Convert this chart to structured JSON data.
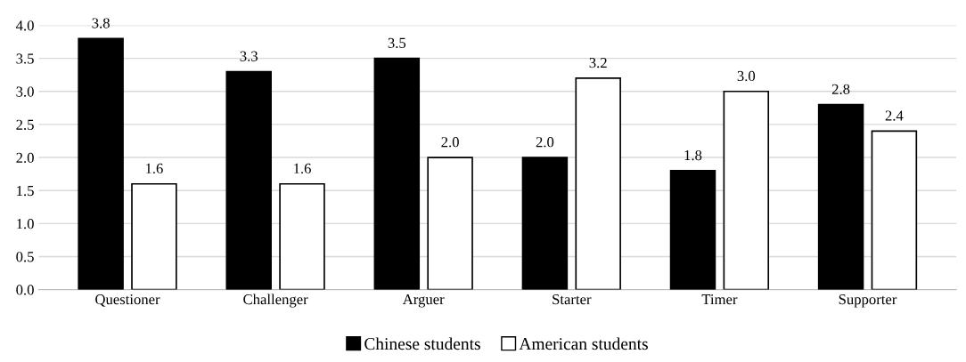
{
  "chart_data": {
    "type": "bar",
    "categories": [
      "Questioner",
      "Challenger",
      "Arguer",
      "Starter",
      "Timer",
      "Supporter"
    ],
    "series": [
      {
        "name": "Chinese students",
        "color": "#000000",
        "values": [
          3.8,
          3.3,
          3.5,
          2.0,
          1.8,
          2.8
        ],
        "value_labels": [
          "3.8",
          "3.3",
          "3.5",
          "2.0",
          "1.8",
          "2.8"
        ]
      },
      {
        "name": "American students",
        "color": "#ffffff",
        "values": [
          1.6,
          1.6,
          2.0,
          3.2,
          3.0,
          2.4
        ],
        "value_labels": [
          "1.6",
          "1.6",
          "2.0",
          "3.2",
          "3.0",
          "2.4"
        ]
      }
    ],
    "ylim": [
      0,
      4
    ],
    "yticks": [
      {
        "value": 0,
        "label": "0.0"
      },
      {
        "value": 0.5,
        "label": "0.5"
      },
      {
        "value": 1,
        "label": "1.0"
      },
      {
        "value": 1.5,
        "label": "1.5"
      },
      {
        "value": 2,
        "label": "2.0"
      },
      {
        "value": 2.5,
        "label": "2.5"
      },
      {
        "value": 3,
        "label": "3.0"
      },
      {
        "value": 3.5,
        "label": "3.5"
      },
      {
        "value": 4,
        "label": "4.0"
      }
    ],
    "grid": "y",
    "legend": "bottom"
  }
}
